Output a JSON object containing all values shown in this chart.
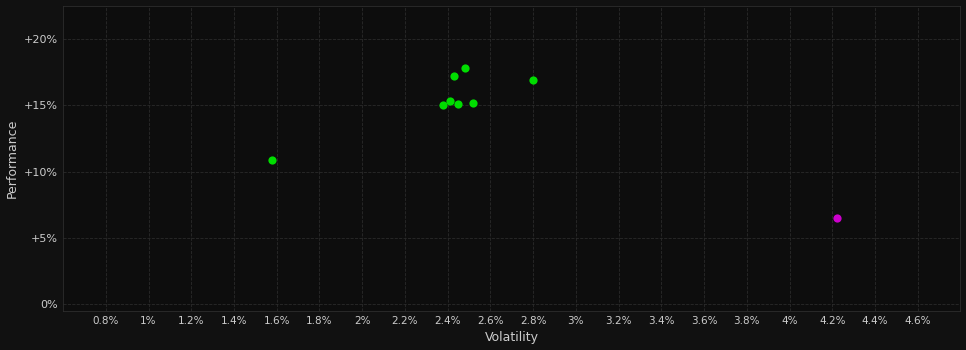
{
  "background_color": "#111111",
  "plot_bg_color": "#0d0d0d",
  "grid_color": "#2a2a2a",
  "text_color": "#cccccc",
  "xlabel": "Volatility",
  "ylabel": "Performance",
  "xlim": [
    0.006,
    0.048
  ],
  "ylim": [
    -0.005,
    0.225
  ],
  "xticks": [
    0.008,
    0.01,
    0.012,
    0.014,
    0.016,
    0.018,
    0.02,
    0.022,
    0.024,
    0.026,
    0.028,
    0.03,
    0.032,
    0.034,
    0.036,
    0.038,
    0.04,
    0.042,
    0.044,
    0.046
  ],
  "xtick_labels": [
    "0.8%",
    "1%",
    "1.2%",
    "1.4%",
    "1.6%",
    "1.8%",
    "2%",
    "2.2%",
    "2.4%",
    "2.6%",
    "2.8%",
    "3%",
    "3.2%",
    "3.4%",
    "3.6%",
    "3.8%",
    "4%",
    "4.2%",
    "4.4%",
    "4.6%"
  ],
  "yticks": [
    0.0,
    0.05,
    0.1,
    0.15,
    0.2
  ],
  "ytick_labels": [
    "0%",
    "+5%",
    "+10%",
    "+15%",
    "+20%"
  ],
  "green_points": [
    [
      0.0158,
      0.109
    ],
    [
      0.0243,
      0.172
    ],
    [
      0.0248,
      0.178
    ],
    [
      0.0241,
      0.153
    ],
    [
      0.0245,
      0.151
    ],
    [
      0.0252,
      0.152
    ],
    [
      0.028,
      0.169
    ],
    [
      0.0238,
      0.15
    ]
  ],
  "magenta_points": [
    [
      0.0422,
      0.065
    ]
  ],
  "green_color": "#00dd00",
  "magenta_color": "#cc00cc",
  "marker_size": 35
}
